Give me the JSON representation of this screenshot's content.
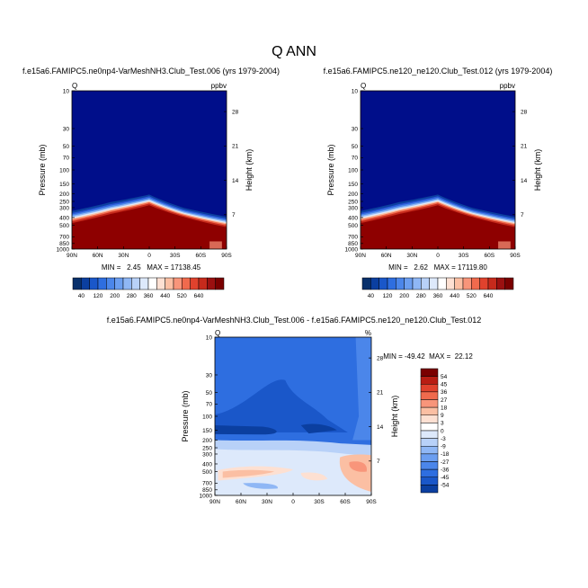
{
  "figure": {
    "title": "Q ANN"
  },
  "chart_data": [
    {
      "type": "heatmap",
      "title": "f.e15a6.FAMIPC5.ne0np4-VarMeshNH3.Club_Test.006 (yrs 1979-2004)",
      "left_label": "Q",
      "right_label": "ppbv",
      "xlabel": "",
      "ylabel": "Pressure (mb)",
      "ylabel_right": "Height (km)",
      "x_ticks": [
        "90N",
        "60N",
        "30N",
        "0",
        "30S",
        "60S",
        "90S"
      ],
      "y_ticks": [
        "10",
        "30",
        "50",
        "70",
        "100",
        "150",
        "200",
        "250",
        "300",
        "400",
        "500",
        "700",
        "850",
        "1000"
      ],
      "y_ticks_right": [
        "28",
        "21",
        "14",
        "7"
      ],
      "stats": {
        "min": "2.45",
        "max": "17138.45",
        "text": "MIN =   2.45   MAX = 17138.45"
      },
      "ylim": [
        1000,
        10
      ],
      "pattern": "moist lower troposphere, boundary rises toward the equator"
    },
    {
      "type": "heatmap",
      "title": "f.e15a6.FAMIPC5.ne120_ne120.Club_Test.012 (yrs 1979-2004)",
      "left_label": "Q",
      "right_label": "ppbv",
      "xlabel": "",
      "ylabel": "Pressure (mb)",
      "ylabel_right": "Height (km)",
      "x_ticks": [
        "90N",
        "60N",
        "30N",
        "0",
        "30S",
        "60S",
        "90S"
      ],
      "y_ticks": [
        "10",
        "30",
        "50",
        "70",
        "100",
        "150",
        "200",
        "250",
        "300",
        "400",
        "500",
        "700",
        "850",
        "1000"
      ],
      "y_ticks_right": [
        "28",
        "21",
        "14",
        "7"
      ],
      "stats": {
        "min": "2.62",
        "max": "17119.80",
        "text": "MIN =   2.62   MAX = 17119.80"
      },
      "ylim": [
        1000,
        10
      ],
      "pattern": "moist lower troposphere, boundary rises toward the equator"
    },
    {
      "type": "heatmap",
      "title": "f.e15a6.FAMIPC5.ne0np4-VarMeshNH3.Club_Test.006 - f.e15a6.FAMIPC5.ne120_ne120.Club_Test.012",
      "left_label": "Q",
      "right_label": "%",
      "xlabel": "",
      "ylabel": "Pressure (mb)",
      "ylabel_right": "Height (km)",
      "x_ticks": [
        "90N",
        "60N",
        "30N",
        "0",
        "30S",
        "60S",
        "90S"
      ],
      "y_ticks": [
        "10",
        "30",
        "50",
        "70",
        "100",
        "150",
        "200",
        "250",
        "300",
        "400",
        "500",
        "700",
        "850",
        "1000"
      ],
      "y_ticks_right": [
        "28",
        "21",
        "14",
        "7"
      ],
      "stats": {
        "min": "-49.42",
        "max": "22.12",
        "text": "MIN = -49.42  MAX =  22.12"
      },
      "ylim": [
        1000,
        10
      ],
      "pattern": "mostly negative percent differences aloft, small positive values near surface"
    }
  ],
  "colorbars": {
    "abs": {
      "labels": [
        "40",
        "120",
        "200",
        "280",
        "360",
        "440",
        "520",
        "640"
      ],
      "colors": [
        "#08306b",
        "#0b3fa0",
        "#1a57c9",
        "#2e6ee0",
        "#4b86ea",
        "#6b9ef0",
        "#8fb7f5",
        "#b8d1f8",
        "#dde9fb",
        "#ffffff",
        "#fde0d2",
        "#fbbfa3",
        "#f8957a",
        "#f06a4d",
        "#e0422d",
        "#c62a1c",
        "#9b1010",
        "#7a0000"
      ]
    },
    "diff": {
      "labels": [
        "54",
        "45",
        "36",
        "27",
        "18",
        "9",
        "3",
        "0",
        "-3",
        "-9",
        "-18",
        "-27",
        "-36",
        "-45",
        "-54"
      ],
      "colors": [
        "#7a0000",
        "#b81d13",
        "#e0422d",
        "#f06a4d",
        "#f8957a",
        "#fbbfa3",
        "#fde0d2",
        "#ffffff",
        "#dde9fb",
        "#b8d1f8",
        "#8fb7f5",
        "#6b9ef0",
        "#4b86ea",
        "#2e6ee0",
        "#1a57c9",
        "#0b3fa0"
      ]
    }
  }
}
